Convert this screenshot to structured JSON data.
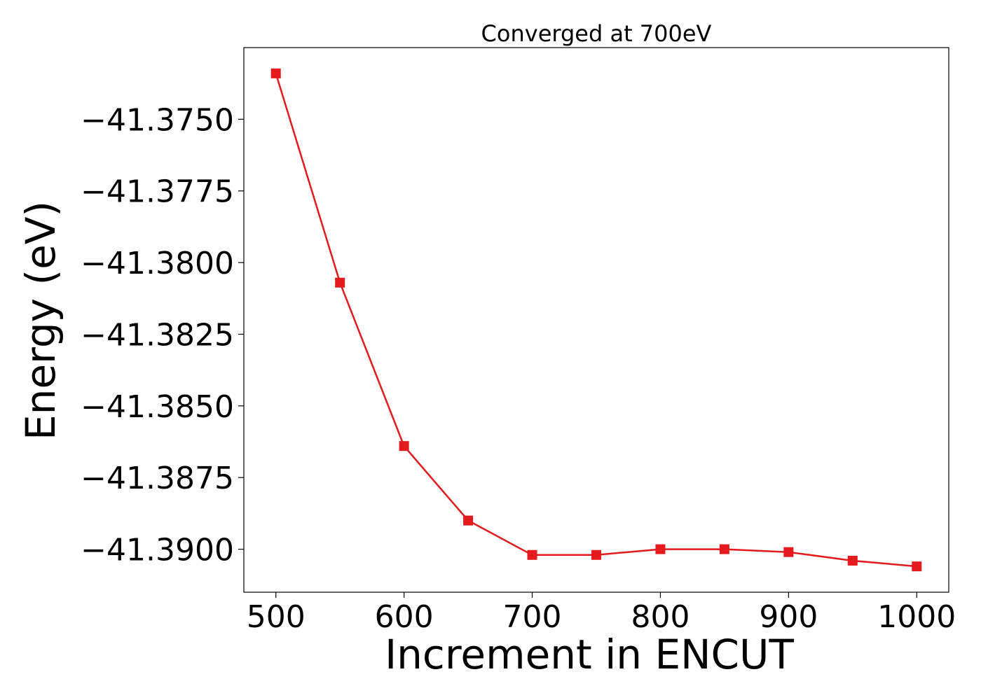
{
  "chart_data": {
    "type": "line",
    "title": "Converged at 700eV",
    "xlabel": "Increment in ENCUT",
    "ylabel": "Energy (eV)",
    "x": [
      500,
      550,
      600,
      650,
      700,
      750,
      800,
      850,
      900,
      950,
      1000
    ],
    "series": [
      {
        "values": [
          -41.3734,
          -41.3807,
          -41.3864,
          -41.389,
          -41.3902,
          -41.3902,
          -41.39,
          -41.39,
          -41.3901,
          -41.3904,
          -41.3906
        ],
        "color": "#e41a1c",
        "marker": "square"
      }
    ],
    "xlim": [
      475,
      1025
    ],
    "ylim": [
      -41.3915,
      -41.3725
    ],
    "xticks": [
      500,
      600,
      700,
      800,
      900,
      1000
    ],
    "xtick_labels": [
      "500",
      "600",
      "700",
      "800",
      "900",
      "1000"
    ],
    "yticks": [
      -41.375,
      -41.3775,
      -41.38,
      -41.3825,
      -41.385,
      -41.3875,
      -41.39
    ],
    "ytick_labels": [
      "−41.3750",
      "−41.3775",
      "−41.3800",
      "−41.3825",
      "−41.3850",
      "−41.3875",
      "−41.3900"
    ],
    "grid": false,
    "legend": "none"
  }
}
